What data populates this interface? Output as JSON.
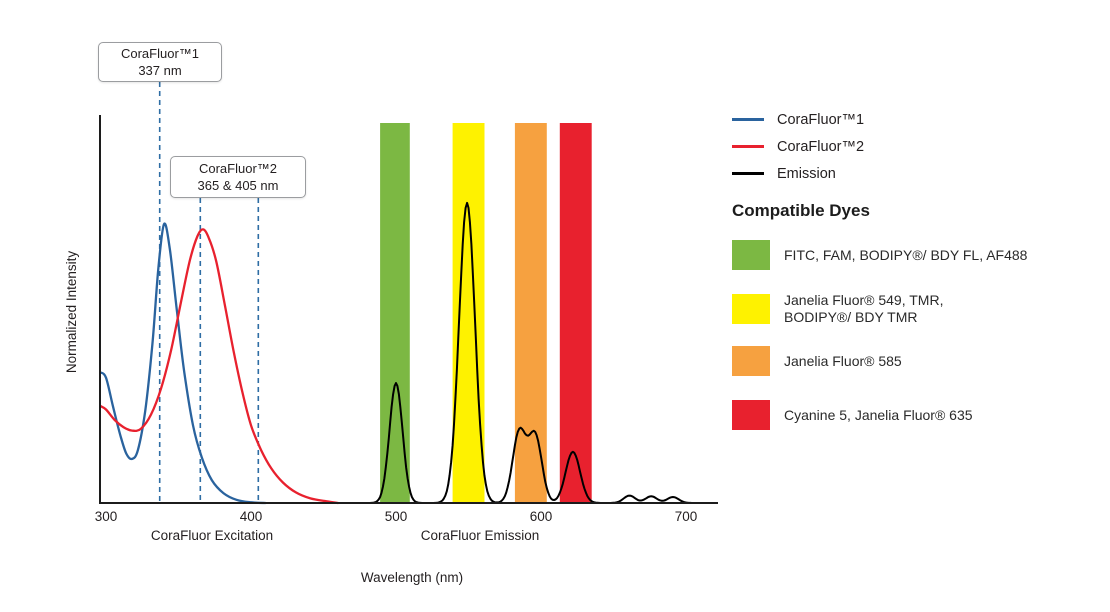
{
  "chart_data": {
    "type": "line",
    "xlabel": "Wavelength (nm)",
    "ylabel": "Normalized Intensity",
    "x_ticks": [
      300,
      400,
      500,
      600,
      700
    ],
    "xlim": [
      296,
      720
    ],
    "ylim": [
      0,
      1
    ],
    "grid": false,
    "legend_position": "right",
    "x_axis_sections": [
      {
        "label": "CoraFluor Excitation",
        "center_nm": 372
      },
      {
        "label": "CoraFluor Emission",
        "center_nm": 558
      }
    ],
    "annotations": [
      {
        "label": "CoraFluor™1",
        "value": "337 nm",
        "lines_nm": [
          337
        ]
      },
      {
        "label": "CoraFluor™2",
        "value": "365 & 405 nm",
        "lines_nm": [
          365,
          405
        ]
      }
    ],
    "annotation_line_color": "#2E6DA4",
    "series": [
      {
        "name": "CoraFluor™1",
        "kind": "excitation",
        "color": "#2A639E",
        "points": [
          [
            296,
            0.37
          ],
          [
            300,
            0.355
          ],
          [
            305,
            0.27
          ],
          [
            310,
            0.19
          ],
          [
            314,
            0.14
          ],
          [
            318,
            0.125
          ],
          [
            322,
            0.15
          ],
          [
            327,
            0.26
          ],
          [
            332,
            0.45
          ],
          [
            336,
            0.66
          ],
          [
            340,
            0.79
          ],
          [
            344,
            0.72
          ],
          [
            349,
            0.54
          ],
          [
            354,
            0.37
          ],
          [
            360,
            0.22
          ],
          [
            366,
            0.13
          ],
          [
            373,
            0.065
          ],
          [
            381,
            0.028
          ],
          [
            390,
            0.009
          ],
          [
            400,
            0.002
          ],
          [
            410,
            0
          ]
        ]
      },
      {
        "name": "CoraFluor™2",
        "kind": "excitation",
        "color": "#E8212E",
        "points": [
          [
            296,
            0.275
          ],
          [
            300,
            0.265
          ],
          [
            306,
            0.235
          ],
          [
            312,
            0.215
          ],
          [
            318,
            0.205
          ],
          [
            324,
            0.21
          ],
          [
            331,
            0.25
          ],
          [
            338,
            0.325
          ],
          [
            345,
            0.435
          ],
          [
            352,
            0.575
          ],
          [
            358,
            0.69
          ],
          [
            363,
            0.755
          ],
          [
            367,
            0.775
          ],
          [
            371,
            0.75
          ],
          [
            376,
            0.685
          ],
          [
            382,
            0.56
          ],
          [
            388,
            0.43
          ],
          [
            394,
            0.315
          ],
          [
            400,
            0.22
          ],
          [
            407,
            0.15
          ],
          [
            414,
            0.098
          ],
          [
            422,
            0.058
          ],
          [
            431,
            0.03
          ],
          [
            441,
            0.013
          ],
          [
            452,
            0.005
          ],
          [
            460,
            0
          ]
        ]
      },
      {
        "name": "Emission",
        "kind": "emission",
        "color": "#000000",
        "peaks": [
          {
            "center_nm": 500,
            "height": 0.34,
            "sigma_nm": 4.5
          },
          {
            "center_nm": 549,
            "height": 0.85,
            "sigma_nm": 5.5
          },
          {
            "center_nm": 585,
            "height": 0.2,
            "sigma_nm": 4.6
          },
          {
            "center_nm": 596,
            "height": 0.19,
            "sigma_nm": 4.6
          },
          {
            "center_nm": 622,
            "height": 0.145,
            "sigma_nm": 5
          },
          {
            "center_nm": 661,
            "height": 0.021,
            "sigma_nm": 4
          },
          {
            "center_nm": 676,
            "height": 0.019,
            "sigma_nm": 4
          },
          {
            "center_nm": 691,
            "height": 0.017,
            "sigma_nm": 4
          }
        ]
      }
    ],
    "emission_bands": [
      {
        "dyes": "FITC, FAM, BODIPY®/ BDY FL, AF488",
        "color": "#7CB843",
        "from_nm": 489,
        "to_nm": 509.5
      },
      {
        "dyes": "Janelia Fluor® 549, TMR, BODIPY®/ BDY TMR",
        "color": "#FEF200",
        "from_nm": 539,
        "to_nm": 561
      },
      {
        "dyes": "Janelia Fluor® 585",
        "color": "#F6A140",
        "from_nm": 582,
        "to_nm": 604
      },
      {
        "dyes": "Cyanine 5, Janelia Fluor® 635",
        "color": "#E8212E",
        "from_nm": 613,
        "to_nm": 635
      }
    ]
  },
  "legend": {
    "series": [
      {
        "label": "CoraFluor™1",
        "color": "#2A639E"
      },
      {
        "label": "CoraFluor™2",
        "color": "#E8212E"
      },
      {
        "label": "Emission",
        "color": "#000000"
      }
    ],
    "dyes_heading": "Compatible Dyes",
    "dyes": [
      {
        "color": "#7CB843",
        "label_lines": [
          "FITC, FAM, BODIPY®/ BDY FL, AF488"
        ]
      },
      {
        "color": "#FEF200",
        "label_lines": [
          "Janelia Fluor® 549, TMR,",
          "BODIPY®/ BDY TMR"
        ]
      },
      {
        "color": "#F6A140",
        "label_lines": [
          "Janelia Fluor® 585"
        ]
      },
      {
        "color": "#E8212E",
        "label_lines": [
          "Cyanine 5, Janelia Fluor® 635"
        ]
      }
    ]
  }
}
